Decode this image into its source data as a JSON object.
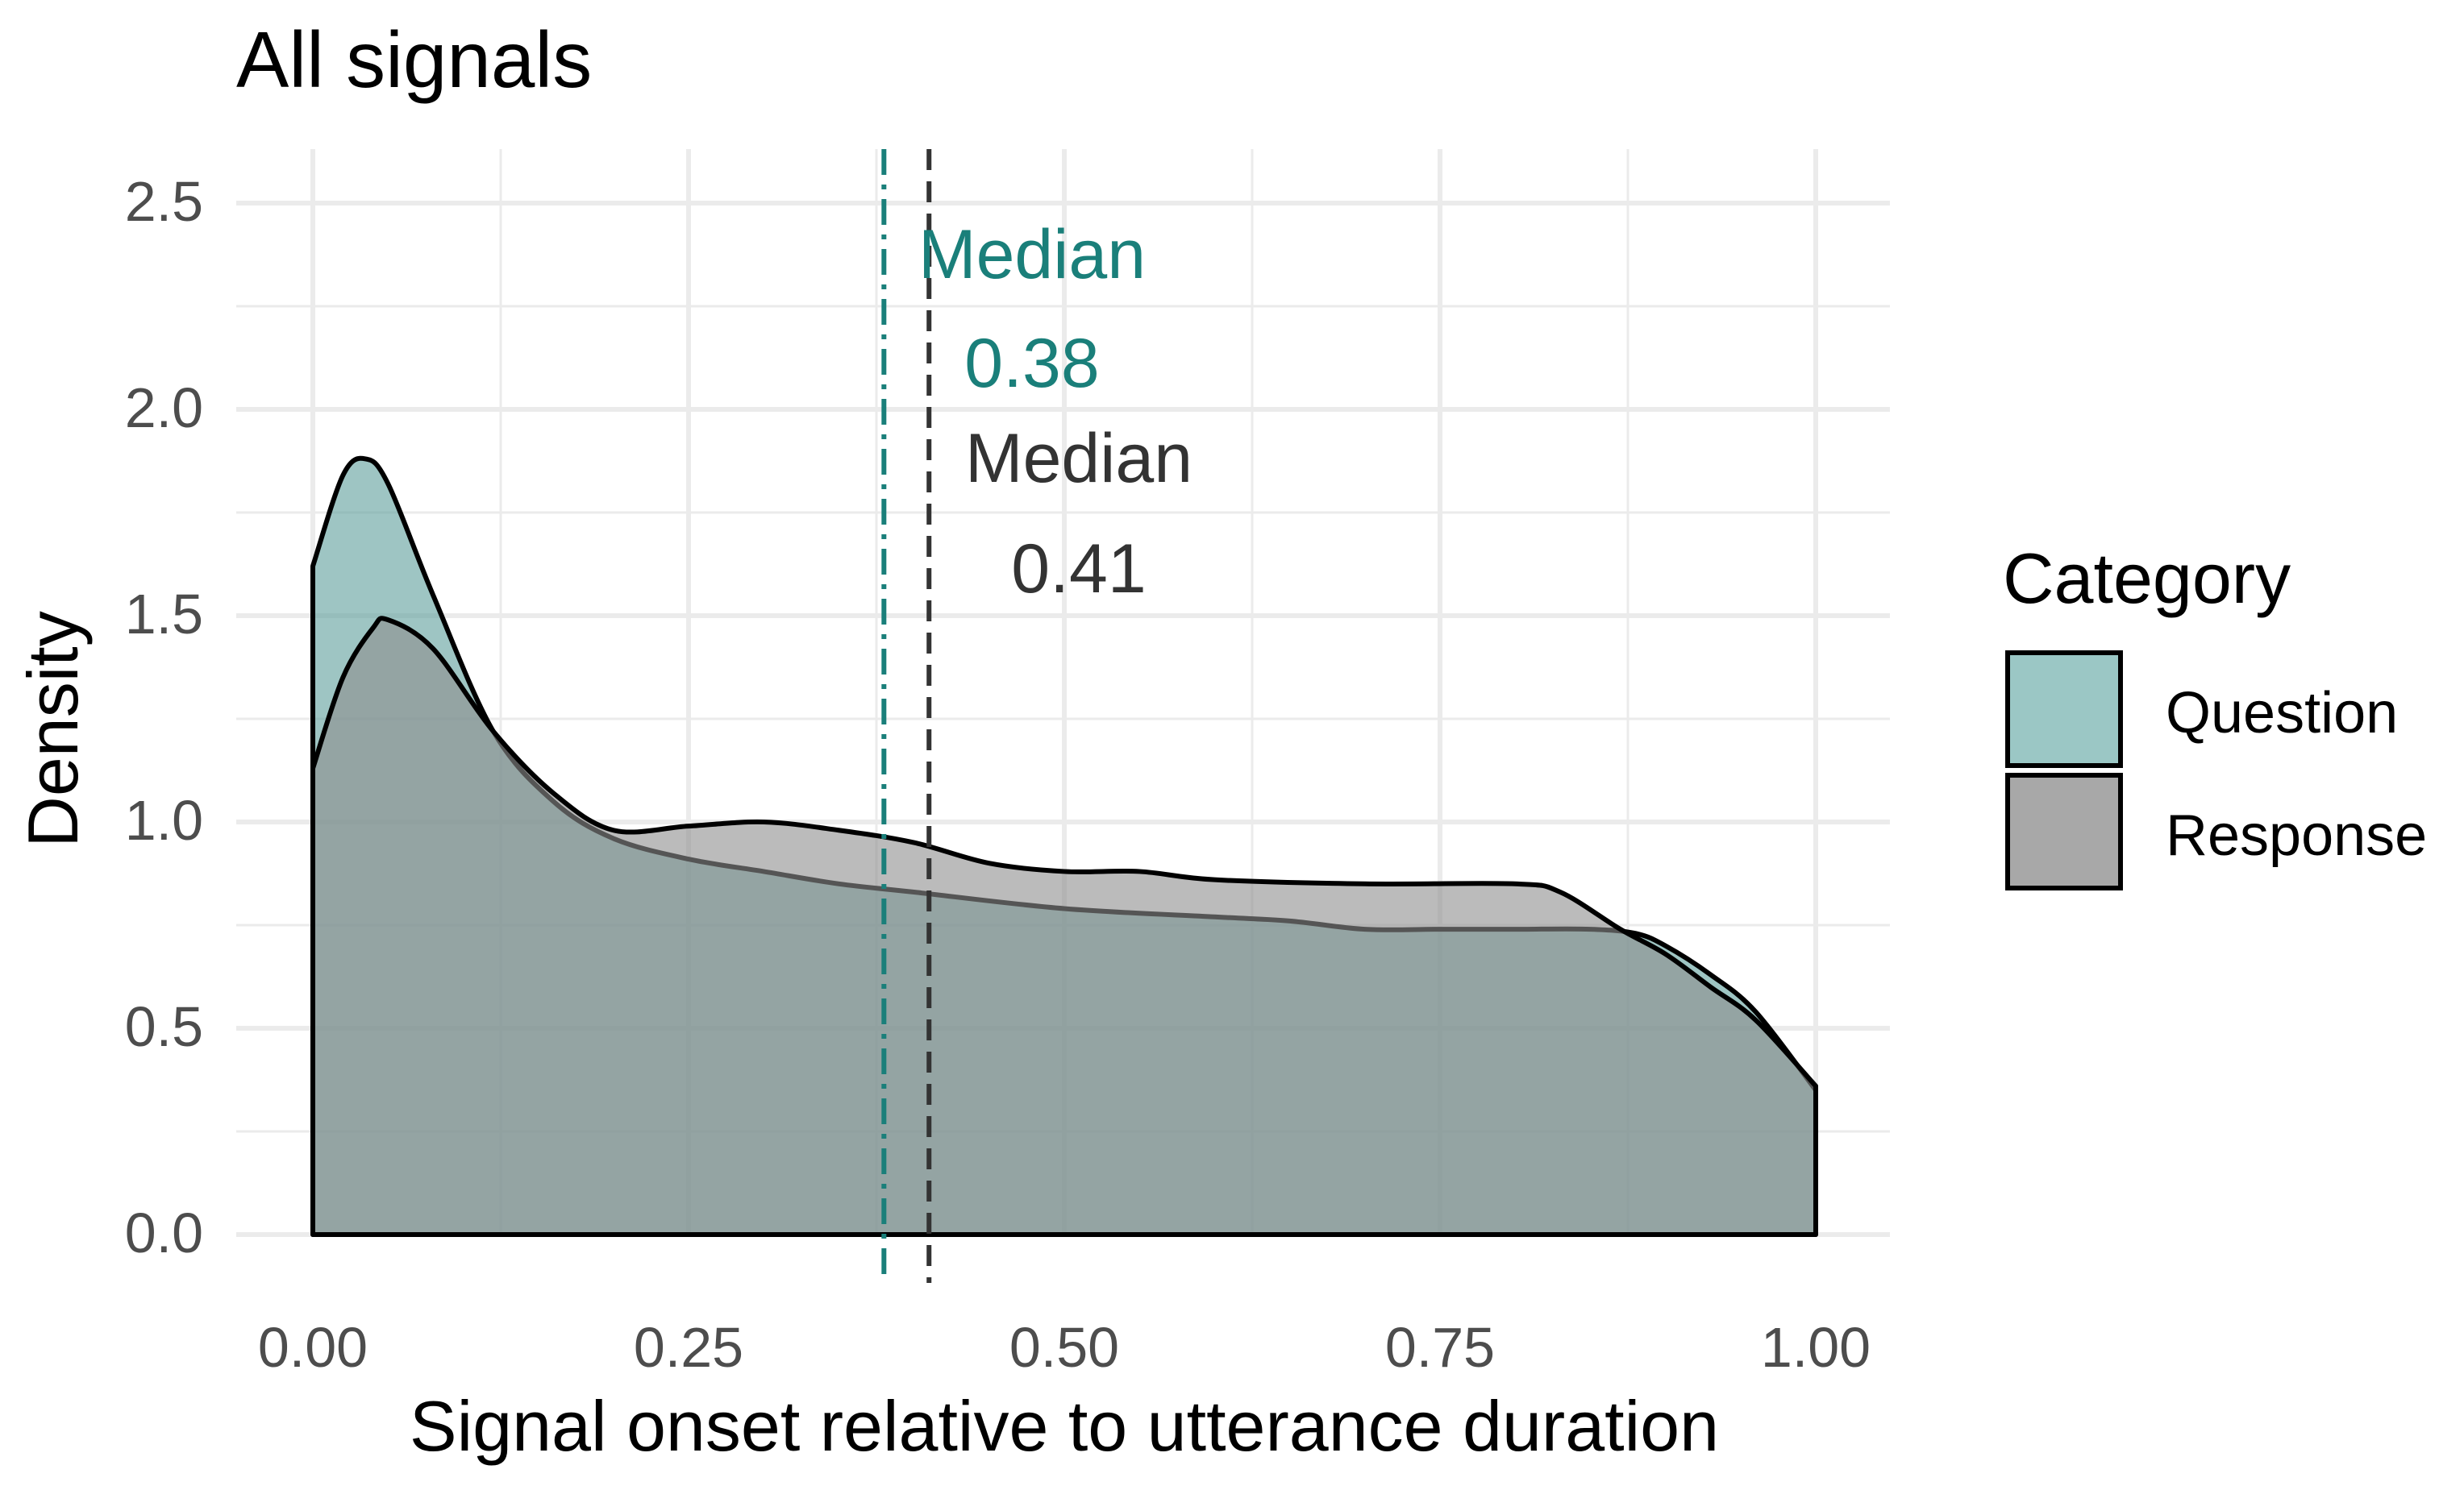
{
  "chart_data": {
    "type": "area",
    "title": "All signals",
    "xlabel": "Signal onset relative to utterance duration",
    "ylabel": "Density",
    "xlim": [
      0,
      1
    ],
    "ylim": [
      0,
      2.5
    ],
    "x_ticks": [
      "0.00",
      "0.25",
      "0.50",
      "0.75",
      "1.00"
    ],
    "y_ticks": [
      "0.0",
      "0.5",
      "1.0",
      "1.5",
      "2.0",
      "2.5"
    ],
    "legend": {
      "title": "Category",
      "position": "right",
      "entries": [
        {
          "label": "Question",
          "fill": "#9bc7c5"
        },
        {
          "label": "Response",
          "fill": "#a8a8a8"
        }
      ]
    },
    "series": [
      {
        "name": "Question",
        "fill": "#5e9e9b",
        "x": [
          0,
          0.02,
          0.035,
          0.05,
          0.08,
          0.12,
          0.16,
          0.2,
          0.25,
          0.3,
          0.35,
          0.4,
          0.5,
          0.6,
          0.65,
          0.7,
          0.75,
          0.8,
          0.85,
          0.88,
          0.9,
          0.93,
          0.96,
          1.0
        ],
        "values": [
          1.62,
          1.84,
          1.88,
          1.82,
          1.55,
          1.22,
          1.05,
          0.96,
          0.91,
          0.88,
          0.85,
          0.83,
          0.79,
          0.77,
          0.76,
          0.74,
          0.74,
          0.74,
          0.74,
          0.73,
          0.7,
          0.63,
          0.54,
          0.35
        ]
      },
      {
        "name": "Response",
        "fill": "#8e8e8e",
        "x": [
          0,
          0.02,
          0.04,
          0.05,
          0.08,
          0.12,
          0.16,
          0.2,
          0.25,
          0.3,
          0.35,
          0.4,
          0.45,
          0.5,
          0.55,
          0.6,
          0.7,
          0.8,
          0.83,
          0.87,
          0.9,
          0.93,
          0.96,
          1.0
        ],
        "values": [
          1.13,
          1.35,
          1.47,
          1.49,
          1.42,
          1.22,
          1.07,
          0.98,
          0.99,
          1.0,
          0.98,
          0.95,
          0.9,
          0.88,
          0.88,
          0.86,
          0.85,
          0.85,
          0.83,
          0.74,
          0.68,
          0.6,
          0.52,
          0.36
        ]
      }
    ],
    "medians": [
      {
        "name": "Question",
        "value": 0.38,
        "label": "Median",
        "value_label": "0.38",
        "color": "#1a7f7a"
      },
      {
        "name": "Response",
        "value": 0.41,
        "label": "Median",
        "value_label": "0.41",
        "color": "#333333"
      }
    ]
  }
}
